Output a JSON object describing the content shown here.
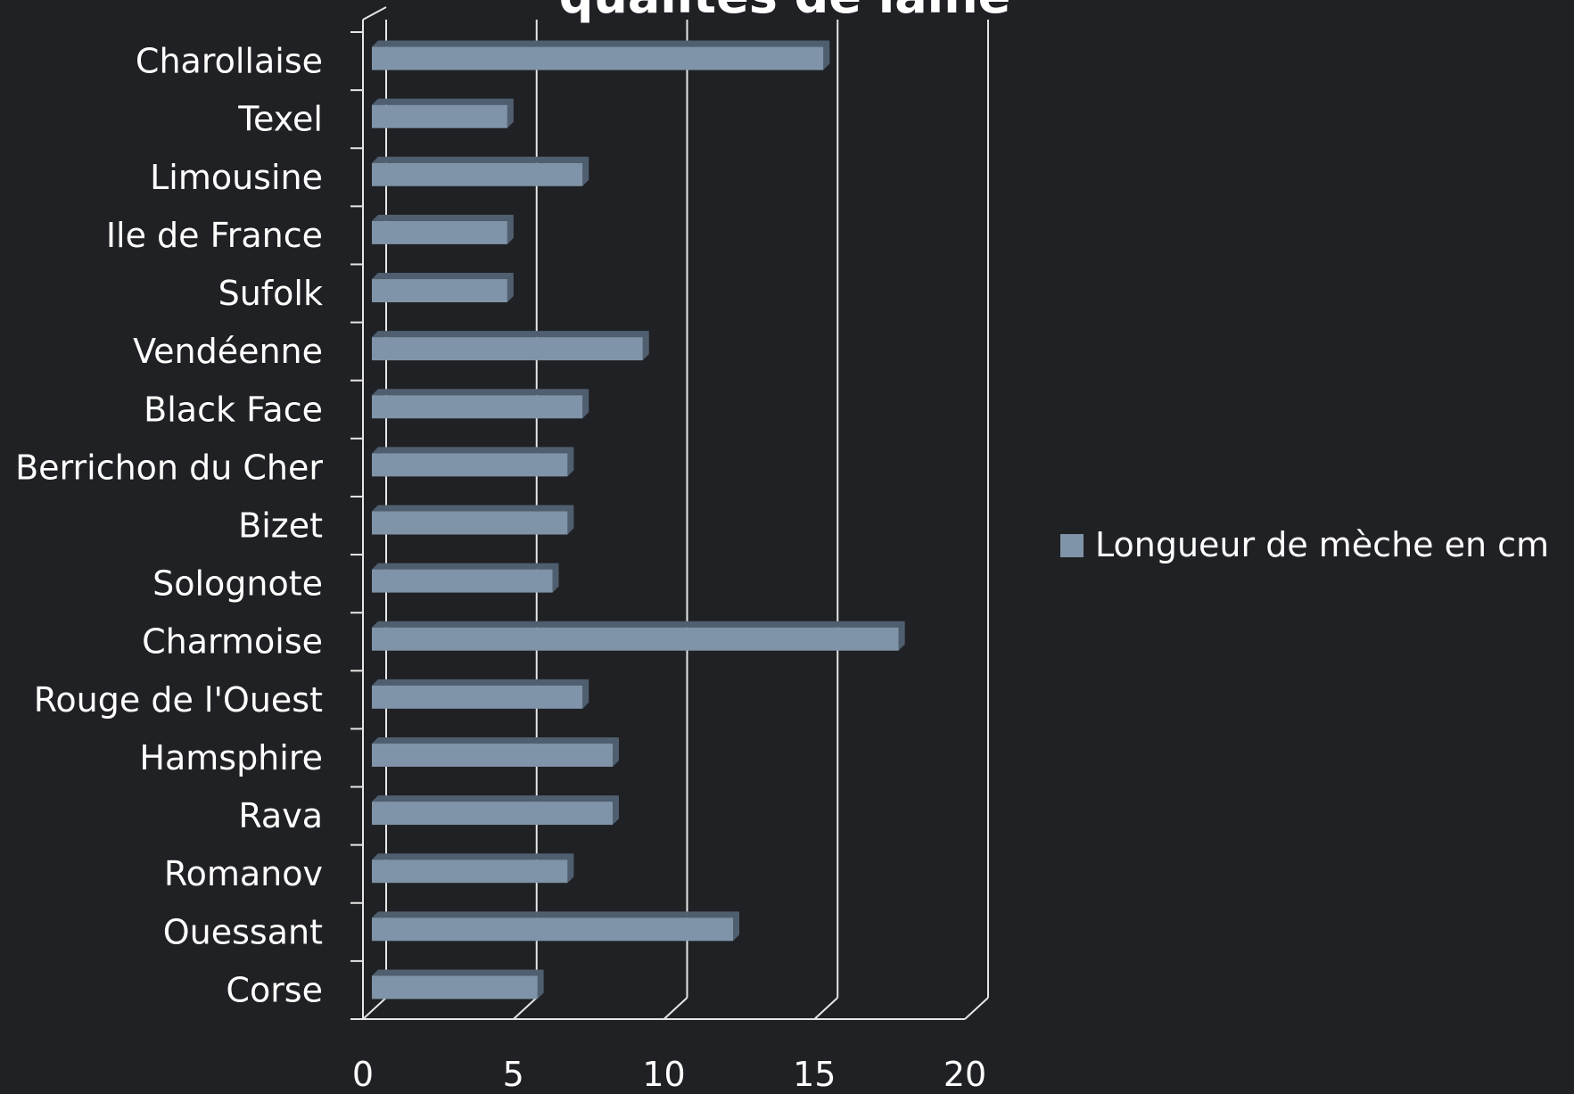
{
  "chart_data": {
    "type": "bar",
    "orientation": "horizontal",
    "style": "3d",
    "title": "qualités de laine",
    "categories": [
      "Charollaise",
      "Texel",
      "Limousine",
      "Ile de France",
      "Sufolk",
      "Vendéenne",
      "Black Face",
      "Berrichon du Cher",
      "Bizet",
      "Solognote",
      "Charmoise",
      "Rouge de l'Ouest",
      "Hamsphire",
      "Rava",
      "Romanov",
      "Ouessant",
      "Corse"
    ],
    "series": [
      {
        "name": "Longueur de mèche en cm",
        "color": "#7f94a8",
        "values": [
          15,
          4.5,
          7,
          4.5,
          4.5,
          9,
          7,
          6.5,
          6.5,
          6,
          17.5,
          7,
          8,
          8,
          6.5,
          12,
          5.5
        ]
      }
    ],
    "x_axis": {
      "ticks": [
        0,
        5,
        10,
        15,
        20
      ],
      "range": [
        0,
        20
      ]
    },
    "gridlines": true,
    "legend": {
      "position": "right",
      "label": "Longueur de mèche en cm"
    },
    "colors": {
      "background": "#202124",
      "axis": "#e6e6e6",
      "text": "#ffffff",
      "bar": "#7f94a8",
      "bar_top": "#9aabbd",
      "bar_side": "#4f5f70"
    }
  }
}
